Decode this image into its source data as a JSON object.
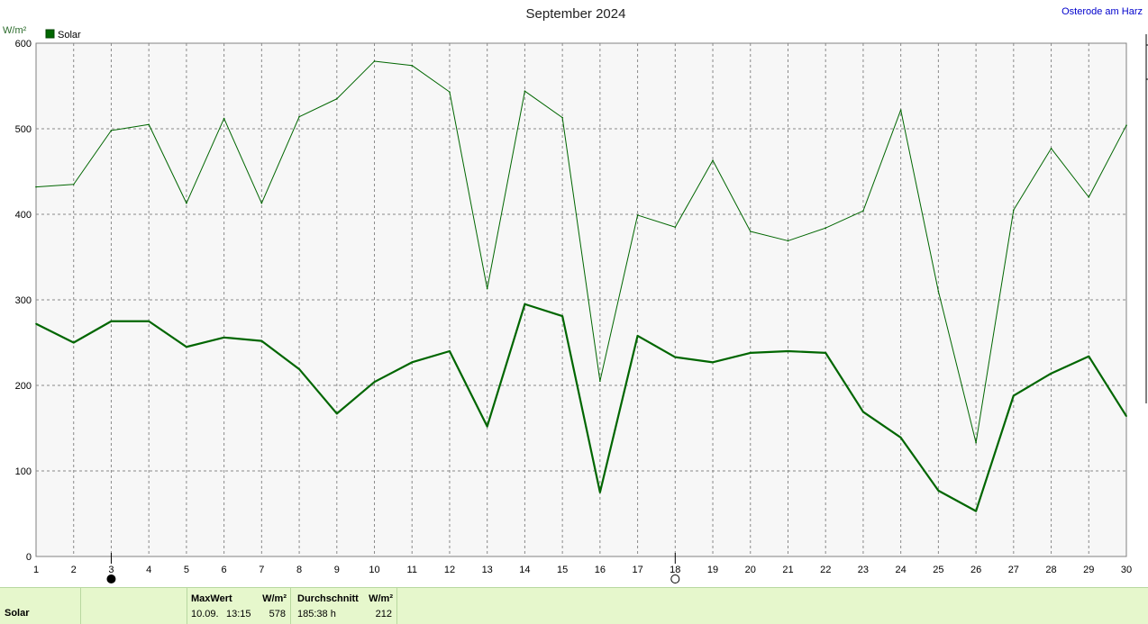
{
  "chart_data": {
    "type": "line",
    "title": "September 2024",
    "location": "Osterode am Harz",
    "ylabel": "W/m²",
    "ylim": [
      0,
      600
    ],
    "yticks": [
      0,
      100,
      200,
      300,
      400,
      500,
      600
    ],
    "x": [
      1,
      2,
      3,
      4,
      5,
      6,
      7,
      8,
      9,
      10,
      11,
      12,
      13,
      14,
      15,
      16,
      17,
      18,
      19,
      20,
      21,
      22,
      23,
      24,
      25,
      26,
      27,
      28,
      29,
      30
    ],
    "legend": {
      "label": "Solar",
      "color": "#006600",
      "position": "top-left"
    },
    "series": [
      {
        "role": "max",
        "color": "#006600",
        "values": [
          432,
          435,
          498,
          505,
          413,
          512,
          413,
          514,
          535,
          579,
          574,
          543,
          313,
          544,
          513,
          205,
          399,
          385,
          463,
          380,
          369,
          384,
          404,
          522,
          310,
          133,
          405,
          477,
          420,
          504
        ]
      },
      {
        "role": "avg",
        "color": "#006600",
        "values": [
          272,
          250,
          275,
          275,
          245,
          256,
          252,
          219,
          167,
          204,
          227,
          240,
          152,
          295,
          281,
          75,
          258,
          233,
          227,
          238,
          240,
          238,
          169,
          139,
          77,
          53,
          188,
          214,
          234,
          164
        ]
      }
    ],
    "markers": {
      "new_moon_day": 3,
      "full_moon_day": 18
    }
  },
  "footer": {
    "row_label": "Solar",
    "max_header": "MaxWert",
    "max_unit": "W/m²",
    "max_date": "10.09.",
    "max_time": "13:15",
    "max_value": "578",
    "avg_header": "Durchschnitt",
    "avg_unit": "W/m²",
    "avg_duration": "185:38 h",
    "avg_value": "212"
  }
}
